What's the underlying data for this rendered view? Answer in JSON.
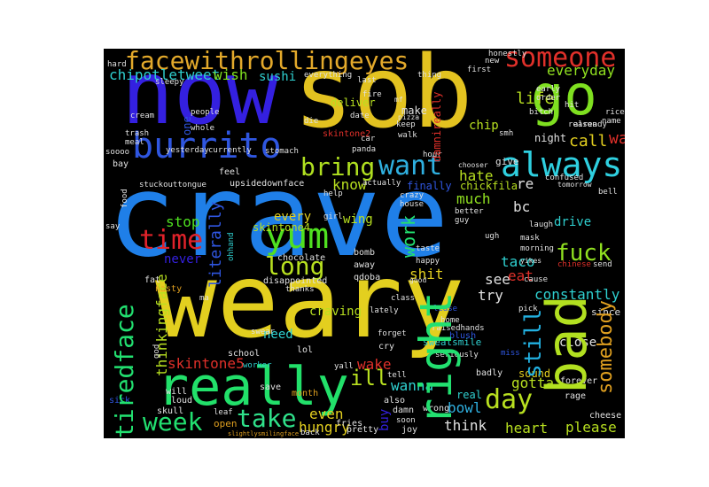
{
  "words": [
    {
      "id": "crave",
      "text": "crave",
      "color": "#1f7fe8"
    },
    {
      "id": "weary",
      "text": "weary",
      "color": "#e3cf1f"
    },
    {
      "id": "now",
      "text": "now",
      "color": "#3420e0"
    },
    {
      "id": "sob",
      "text": "sob",
      "color": "#e3c220"
    },
    {
      "id": "go",
      "text": "go",
      "color": "#7fe020"
    },
    {
      "id": "really",
      "text": "really",
      "color": "#22e06a"
    },
    {
      "id": "bad",
      "text": "bad",
      "color": "#b2e020"
    },
    {
      "id": "burrito",
      "text": "burrito",
      "color": "#2f56e0"
    },
    {
      "id": "always",
      "text": "always",
      "color": "#2fd0e0"
    },
    {
      "id": "right",
      "text": "right",
      "color": "#22e070"
    },
    {
      "id": "facewithrollingeyes",
      "text": "facewithrollingeyes",
      "color": "#e3a92b"
    },
    {
      "id": "someone",
      "text": "someone",
      "color": "#e0302a"
    },
    {
      "id": "want",
      "text": "want",
      "color": "#2fb0e0"
    },
    {
      "id": "bring",
      "text": "bring",
      "color": "#b0e020"
    },
    {
      "id": "yum",
      "text": "yum",
      "color": "#4fe020"
    },
    {
      "id": "time",
      "text": "time",
      "color": "#e0222a"
    },
    {
      "id": "long",
      "text": "long",
      "color": "#b8e020"
    },
    {
      "id": "take",
      "text": "take",
      "color": "#2fe08a"
    },
    {
      "id": "week",
      "text": "week",
      "color": "#22e070"
    },
    {
      "id": "tiredface",
      "text": "tiredface",
      "color": "#22e070"
    },
    {
      "id": "day",
      "text": "day",
      "color": "#b8e020"
    },
    {
      "id": "fuck",
      "text": "fuck",
      "color": "#90e020"
    },
    {
      "id": "ill",
      "text": "ill",
      "color": "#b8e020"
    },
    {
      "id": "still",
      "text": "still",
      "color": "#22b0e0"
    },
    {
      "id": "somebody",
      "text": "somebody",
      "color": "#e0a020"
    },
    {
      "id": "literally",
      "text": "literally",
      "color": "#2f56e0"
    },
    {
      "id": "work",
      "text": "work",
      "color": "#22e070"
    },
    {
      "id": "chipotletweet",
      "text": "chipotletweet",
      "color": "#2fd0d0"
    },
    {
      "id": "wish",
      "text": "wish",
      "color": "#7fe020"
    },
    {
      "id": "sushi",
      "text": "sushi",
      "color": "#2fd0d0"
    },
    {
      "id": "life",
      "text": "life",
      "color": "#b8e020"
    },
    {
      "id": "everyday",
      "text": "everyday",
      "color": "#90e020"
    },
    {
      "id": "call",
      "text": "call",
      "color": "#e3cf1f"
    },
    {
      "id": "wait",
      "text": "wait",
      "color": "#e0302a"
    },
    {
      "id": "know",
      "text": "know",
      "color": "#b8e020"
    },
    {
      "id": "hate",
      "text": "hate",
      "color": "#b8e020"
    },
    {
      "id": "re",
      "text": "re",
      "color": "#e0e0e0"
    },
    {
      "id": "bc",
      "text": "bc",
      "color": "#e0e0e0"
    },
    {
      "id": "much",
      "text": "much",
      "color": "#90e020"
    },
    {
      "id": "stop",
      "text": "stop",
      "color": "#4fe020"
    },
    {
      "id": "every",
      "text": "every",
      "color": "#e3cf1f"
    },
    {
      "id": "wing",
      "text": "wing",
      "color": "#b8e020"
    },
    {
      "id": "never",
      "text": "never",
      "color": "#3420e0"
    },
    {
      "id": "skintone4",
      "text": "skintone4",
      "color": "#b8e020"
    },
    {
      "id": "shit",
      "text": "shit",
      "color": "#e3cf1f"
    },
    {
      "id": "see",
      "text": "see",
      "color": "#e0e0e0"
    },
    {
      "id": "eat",
      "text": "eat",
      "color": "#e0302a"
    },
    {
      "id": "taco",
      "text": "taco",
      "color": "#2fd0d0"
    },
    {
      "id": "try",
      "text": "try",
      "color": "#e0e0e0"
    },
    {
      "id": "constantly",
      "text": "constantly",
      "color": "#2fd0d0"
    },
    {
      "id": "drive",
      "text": "drive",
      "color": "#2fd0d0"
    },
    {
      "id": "need",
      "text": "need",
      "color": "#2fd0d0"
    },
    {
      "id": "craving",
      "text": "craving",
      "color": "#b8e020"
    },
    {
      "id": "skintone5",
      "text": "skintone5",
      "color": "#e0302a"
    },
    {
      "id": "thinkingface",
      "text": "thinkingface",
      "color": "#b8e020"
    },
    {
      "id": "wake",
      "text": "wake",
      "color": "#e0302a"
    },
    {
      "id": "wanna",
      "text": "wanna",
      "color": "#2fd0d0"
    },
    {
      "id": "gotta",
      "text": "gotta",
      "color": "#b8e020"
    },
    {
      "id": "even",
      "text": "even",
      "color": "#e3cf1f"
    },
    {
      "id": "hungry",
      "text": "hungry",
      "color": "#e3cf1f"
    },
    {
      "id": "buy",
      "text": "buy",
      "color": "#3420e0"
    },
    {
      "id": "bowl",
      "text": "bowl",
      "color": "#2fb0e0"
    },
    {
      "id": "think",
      "text": "think",
      "color": "#e0e0e0"
    },
    {
      "id": "heart",
      "text": "heart",
      "color": "#b8e020"
    },
    {
      "id": "please",
      "text": "please",
      "color": "#b8e020"
    },
    {
      "id": "real",
      "text": "real",
      "color": "#2fd0d0"
    },
    {
      "id": "sound",
      "text": "sound",
      "color": "#e3cf1f"
    },
    {
      "id": "close",
      "text": "close",
      "color": "#e0e0e0"
    },
    {
      "id": "chip",
      "text": "chip",
      "color": "#b8e020"
    },
    {
      "id": "make",
      "text": "make",
      "color": "#e0e0e0"
    },
    {
      "id": "deliver",
      "text": "deliver",
      "color": "#b8e020"
    },
    {
      "id": "night",
      "text": "night",
      "color": "#e0e0e0"
    },
    {
      "id": "give",
      "text": "give",
      "color": "#e0e0e0"
    },
    {
      "id": "finally",
      "text": "finally",
      "color": "#2f56e0"
    },
    {
      "id": "chickfila",
      "text": "chickfila",
      "color": "#b8e020"
    },
    {
      "id": "damnireally",
      "text": "damnireally",
      "color": "#e0302a"
    },
    {
      "id": "upsidedownface",
      "text": "upsidedownface",
      "color": "#e0e0e0"
    },
    {
      "id": "stuckouttongue",
      "text": "stuckouttongue",
      "color": "#e0e0e0"
    },
    {
      "id": "one",
      "text": "one",
      "color": "#2f56e0"
    },
    {
      "id": "skintone2",
      "text": "skintone2",
      "color": "#e0302a"
    },
    {
      "id": "nasty",
      "text": "nasty",
      "color": "#e0a020"
    },
    {
      "id": "fat",
      "text": "fat",
      "color": "#e0e0e0"
    },
    {
      "id": "chocolate",
      "text": "chocolate",
      "color": "#e0e0e0"
    },
    {
      "id": "disappointed",
      "text": "disappointed",
      "color": "#e0e0e0"
    },
    {
      "id": "thanks",
      "text": "thanks",
      "color": "#e0e0e0"
    },
    {
      "id": "bomb",
      "text": "bomb",
      "color": "#e0e0e0"
    },
    {
      "id": "away",
      "text": "away",
      "color": "#e0e0e0"
    },
    {
      "id": "qdoba",
      "text": "qdoba",
      "color": "#e0e0e0"
    },
    {
      "id": "sweatsmile",
      "text": "sweatsmile",
      "color": "#2fd0d0"
    },
    {
      "id": "raisedhands",
      "text": "raisedhands",
      "color": "#e0e0e0"
    },
    {
      "id": "blush",
      "text": "blush",
      "color": "#2f56e0"
    },
    {
      "id": "lol",
      "text": "lol",
      "color": "#e0e0e0"
    },
    {
      "id": "school",
      "text": "school",
      "color": "#e0e0e0"
    },
    {
      "id": "worker",
      "text": "worker",
      "color": "#2fd0d0"
    },
    {
      "id": "open",
      "text": "open",
      "color": "#e0a020"
    },
    {
      "id": "fries",
      "text": "fries",
      "color": "#e0e0e0"
    },
    {
      "id": "month",
      "text": "month",
      "color": "#e0a020"
    },
    {
      "id": "skull",
      "text": "skull",
      "color": "#e0e0e0"
    },
    {
      "id": "loud",
      "text": "loud",
      "color": "#e0e0e0"
    },
    {
      "id": "will",
      "text": "will",
      "color": "#e0e0e0"
    },
    {
      "id": "sick",
      "text": "sick",
      "color": "#2f56e0"
    },
    {
      "id": "save",
      "text": "save",
      "color": "#e0e0e0"
    },
    {
      "id": "leaf",
      "text": "leaf",
      "color": "#e0e0e0"
    },
    {
      "id": "slightlysmilingface",
      "text": "slightlysmilingface",
      "color": "#e0a020"
    },
    {
      "id": "back",
      "text": "back",
      "color": "#e0e0e0"
    },
    {
      "id": "pretty",
      "text": "pretty",
      "color": "#e0e0e0"
    },
    {
      "id": "joy",
      "text": "joy",
      "color": "#e0e0e0"
    },
    {
      "id": "soon",
      "text": "soon",
      "color": "#e0e0e0"
    },
    {
      "id": "damn",
      "text": "damn",
      "color": "#e0e0e0"
    },
    {
      "id": "wrong",
      "text": "wrong",
      "color": "#e0e0e0"
    },
    {
      "id": "badly",
      "text": "badly",
      "color": "#e0e0e0"
    },
    {
      "id": "cheese",
      "text": "cheese",
      "color": "#e0e0e0"
    },
    {
      "id": "rage",
      "text": "rage",
      "color": "#e0e0e0"
    },
    {
      "id": "forever",
      "text": "forever",
      "color": "#e0e0e0"
    },
    {
      "id": "tell",
      "text": "tell",
      "color": "#e0e0e0"
    },
    {
      "id": "also",
      "text": "also",
      "color": "#e0e0e0"
    },
    {
      "id": "cry",
      "text": "cry",
      "color": "#e0e0e0"
    },
    {
      "id": "seriously",
      "text": "seriously",
      "color": "#e0e0e0"
    },
    {
      "id": "miss",
      "text": "miss",
      "color": "#2f56e0"
    },
    {
      "id": "yall",
      "text": "yall",
      "color": "#e0e0e0"
    },
    {
      "id": "forget",
      "text": "forget",
      "color": "#e0e0e0"
    },
    {
      "id": "swear",
      "text": "swear",
      "color": "#e0e0e0"
    },
    {
      "id": "ma",
      "text": "ma",
      "color": "#e0e0e0"
    },
    {
      "id": "god",
      "text": "god",
      "color": "#e0e0e0"
    },
    {
      "id": "lately",
      "text": "lately",
      "color": "#e0e0e0"
    },
    {
      "id": "class",
      "text": "class",
      "color": "#e0e0e0"
    },
    {
      "id": "home",
      "text": "home",
      "color": "#e0e0e0"
    },
    {
      "id": "lease",
      "text": "lease",
      "color": "#2f56e0"
    },
    {
      "id": "since",
      "text": "since",
      "color": "#e0e0e0"
    },
    {
      "id": "pick",
      "text": "pick",
      "color": "#e0e0e0"
    },
    {
      "id": "chinese",
      "text": "chinese",
      "color": "#e0302a"
    },
    {
      "id": "send",
      "text": "send",
      "color": "#e0e0e0"
    },
    {
      "id": "good",
      "text": "good",
      "color": "#e0e0e0"
    },
    {
      "id": "happy",
      "text": "happy",
      "color": "#e0e0e0"
    },
    {
      "id": "taste",
      "text": "taste",
      "color": "#e0e0e0"
    },
    {
      "id": "morning",
      "text": "morning",
      "color": "#e0e0e0"
    },
    {
      "id": "mask",
      "text": "mask",
      "color": "#e0e0e0"
    },
    {
      "id": "laugh",
      "text": "laugh",
      "color": "#e0e0e0"
    },
    {
      "id": "better",
      "text": "better",
      "color": "#e0e0e0"
    },
    {
      "id": "guy",
      "text": "guy",
      "color": "#e0e0e0"
    },
    {
      "id": "house",
      "text": "house",
      "color": "#e0e0e0"
    },
    {
      "id": "crazy",
      "text": "crazy",
      "color": "#e0e0e0"
    },
    {
      "id": "girl",
      "text": "girl",
      "color": "#e0e0e0"
    },
    {
      "id": "help",
      "text": "help",
      "color": "#e0e0e0"
    },
    {
      "id": "ohhand",
      "text": "ohhand",
      "color": "#2fd0d0"
    },
    {
      "id": "say",
      "text": "say",
      "color": "#e0e0e0"
    },
    {
      "id": "food",
      "text": "food",
      "color": "#e0e0e0"
    },
    {
      "id": "bay",
      "text": "bay",
      "color": "#e0e0e0"
    },
    {
      "id": "soooo",
      "text": "soooo",
      "color": "#e0e0e0"
    },
    {
      "id": "yesterday",
      "text": "yesterday",
      "color": "#e0e0e0"
    },
    {
      "id": "currently",
      "text": "currently",
      "color": "#e0e0e0"
    },
    {
      "id": "feel",
      "text": "feel",
      "color": "#e0e0e0"
    },
    {
      "id": "meal",
      "text": "meal",
      "color": "#e0e0e0"
    },
    {
      "id": "trash",
      "text": "trash",
      "color": "#e0e0e0"
    },
    {
      "id": "cream",
      "text": "cream",
      "color": "#e0e0e0"
    },
    {
      "id": "whole",
      "text": "whole",
      "color": "#e0e0e0"
    },
    {
      "id": "people",
      "text": "people",
      "color": "#e0e0e0"
    },
    {
      "id": "die",
      "text": "die",
      "color": "#e0e0e0"
    },
    {
      "id": "stomach",
      "text": "stomach",
      "color": "#e0e0e0"
    },
    {
      "id": "panda",
      "text": "panda",
      "color": "#e0e0e0"
    },
    {
      "id": "car",
      "text": "car",
      "color": "#e0e0e0"
    },
    {
      "id": "date",
      "text": "date",
      "color": "#e0e0e0"
    },
    {
      "id": "fire",
      "text": "fire",
      "color": "#e0e0e0"
    },
    {
      "id": "mf",
      "text": "mf",
      "color": "#e0e0e0"
    },
    {
      "id": "keep",
      "text": "keep",
      "color": "#e0e0e0"
    },
    {
      "id": "pizza",
      "text": "pizza",
      "color": "#e0e0e0"
    },
    {
      "id": "walk",
      "text": "walk",
      "color": "#e0e0e0"
    },
    {
      "id": "hour",
      "text": "hour",
      "color": "#e0e0e0"
    },
    {
      "id": "smh",
      "text": "smh",
      "color": "#e0e0e0"
    },
    {
      "id": "chooser",
      "text": "chooser",
      "color": "#e0e0e0"
    },
    {
      "id": "actually",
      "text": "actually",
      "color": "#e0e0e0"
    },
    {
      "id": "yikes",
      "text": "yikes",
      "color": "#e0e0e0"
    },
    {
      "id": "cause",
      "text": "cause",
      "color": "#e0e0e0"
    },
    {
      "id": "ugh",
      "text": "ugh",
      "color": "#e0e0e0"
    },
    {
      "id": "confused",
      "text": "confused",
      "color": "#e0e0e0"
    },
    {
      "id": "tomorrow",
      "text": "tomorrow",
      "color": "#e0e0e0"
    },
    {
      "id": "reason",
      "text": "reason",
      "color": "#e0e0e0"
    },
    {
      "id": "rice",
      "text": "rice",
      "color": "#e0e0e0"
    },
    {
      "id": "name",
      "text": "name",
      "color": "#e0e0e0"
    },
    {
      "id": "already",
      "text": "already",
      "color": "#e0e0e0"
    },
    {
      "id": "hit",
      "text": "hit",
      "color": "#e0e0e0"
    },
    {
      "id": "bitch",
      "text": "bitch",
      "color": "#e0e0e0"
    },
    {
      "id": "early",
      "text": "early",
      "color": "#e0e0e0"
    },
    {
      "id": "order",
      "text": "order",
      "color": "#e0e0e0"
    },
    {
      "id": "first",
      "text": "first",
      "color": "#e0e0e0"
    },
    {
      "id": "new",
      "text": "new",
      "color": "#e0e0e0"
    },
    {
      "id": "honestly",
      "text": "honestly",
      "color": "#e0e0e0"
    },
    {
      "id": "thing",
      "text": "thing",
      "color": "#e0e0e0"
    },
    {
      "id": "last",
      "text": "last",
      "color": "#e0e0e0"
    },
    {
      "id": "everything",
      "text": "everything",
      "color": "#e0e0e0"
    },
    {
      "id": "sleepy",
      "text": "sleepy",
      "color": "#e0e0e0"
    },
    {
      "id": "hard",
      "text": "hard",
      "color": "#e0e0e0"
    },
    {
      "id": "bell",
      "text": "bell",
      "color": "#e0e0e0"
    }
  ]
}
